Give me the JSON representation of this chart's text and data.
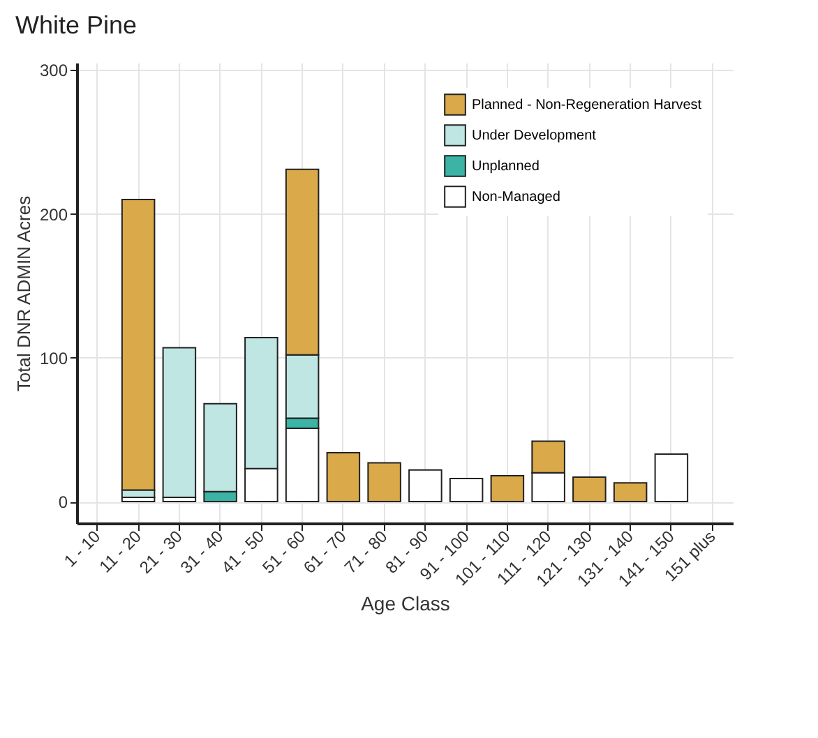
{
  "chart_data": {
    "type": "bar",
    "title": "White Pine",
    "xlabel": "Age Class",
    "ylabel": "Total DNR ADMIN Acres",
    "categories": [
      "1 - 10",
      "11 - 20",
      "21 - 30",
      "31 - 40",
      "41 - 50",
      "51 - 60",
      "61 - 70",
      "71 - 80",
      "81 - 90",
      "91 - 100",
      "101 - 110",
      "111 - 120",
      "121 - 130",
      "131 - 140",
      "141 - 150",
      "151 plus"
    ],
    "stacked": true,
    "series": [
      {
        "name": "Non-Managed",
        "color": "#ffffff",
        "values": [
          null,
          3,
          3,
          null,
          23,
          51,
          null,
          null,
          22,
          16,
          null,
          20,
          null,
          null,
          33,
          null
        ]
      },
      {
        "name": "Unplanned",
        "color": "#3bb3a5",
        "values": [
          null,
          null,
          null,
          7,
          null,
          7,
          null,
          null,
          null,
          null,
          null,
          null,
          null,
          null,
          null,
          null
        ]
      },
      {
        "name": "Under Development",
        "color": "#bfe6e2",
        "values": [
          null,
          5,
          104,
          61,
          91,
          44,
          null,
          null,
          null,
          null,
          null,
          null,
          null,
          null,
          null,
          null
        ]
      },
      {
        "name": "Planned - Non-Regeneration Harvest",
        "color": "#d9a94a",
        "values": [
          null,
          202,
          null,
          null,
          null,
          129,
          34,
          27,
          null,
          null,
          18,
          22,
          17,
          13,
          null,
          null
        ]
      }
    ],
    "ylim": [
      -15,
      305
    ],
    "yticks": [
      0,
      100,
      200,
      300
    ],
    "grid": true,
    "legend": "top right"
  }
}
